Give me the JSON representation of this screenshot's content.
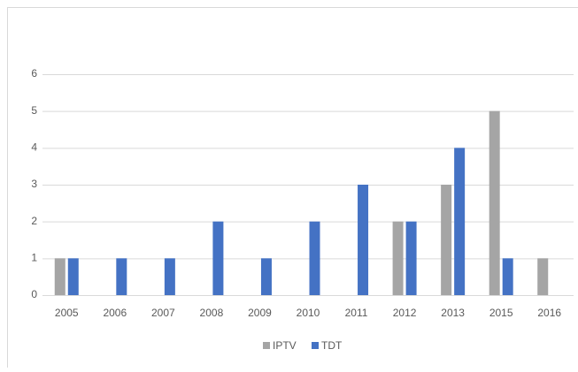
{
  "chart_data": {
    "type": "bar",
    "categories": [
      "2005",
      "2006",
      "2007",
      "2008",
      "2009",
      "2010",
      "2011",
      "2012",
      "2013",
      "2015",
      "2016"
    ],
    "series": [
      {
        "name": "IPTV",
        "color": "#a5a5a5",
        "values": [
          1,
          0,
          0,
          0,
          0,
          0,
          0,
          2,
          3,
          5,
          1
        ]
      },
      {
        "name": "TDT",
        "color": "#4472c4",
        "values": [
          1,
          1,
          1,
          2,
          1,
          2,
          3,
          2,
          4,
          1,
          0
        ]
      }
    ],
    "ylim": [
      0,
      6
    ],
    "yticks": [
      0,
      1,
      2,
      3,
      4,
      5,
      6
    ],
    "grid": true,
    "legend": "bottom"
  }
}
